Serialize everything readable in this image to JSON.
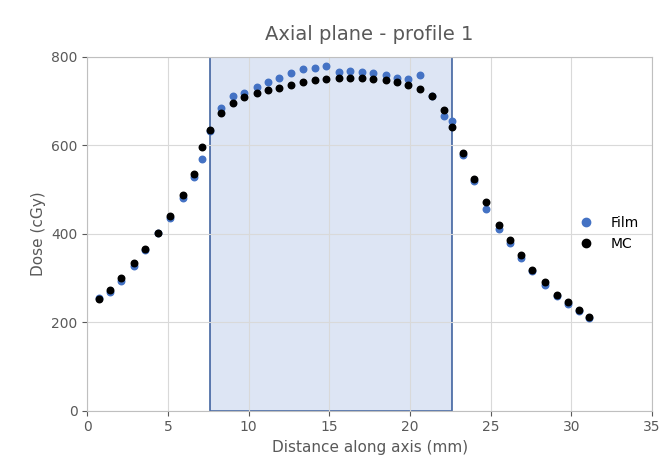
{
  "chart_data": {
    "type": "scatter",
    "title": "Axial plane - profile 1",
    "x_label": "Distance along axis (mm)",
    "y_label": "Dose (cGy)",
    "x": [
      0.7,
      1.4,
      2.1,
      2.9,
      3.6,
      4.4,
      5.1,
      5.9,
      6.6,
      7.1,
      7.6,
      8.3,
      9.0,
      9.7,
      10.5,
      11.2,
      11.9,
      12.6,
      13.4,
      14.1,
      14.8,
      15.6,
      16.3,
      17.0,
      17.7,
      18.5,
      19.2,
      19.9,
      20.6,
      21.4,
      22.1,
      22.6,
      23.3,
      24.0,
      24.7,
      25.5,
      26.2,
      26.9,
      27.6,
      28.4,
      29.1,
      29.8,
      30.5,
      31.1
    ],
    "series": [
      {
        "name": "Film",
        "color": "#4472c4",
        "marker": "circle",
        "values": [
          255,
          268,
          292,
          328,
          362,
          402,
          435,
          480,
          528,
          568,
          632,
          683,
          710,
          718,
          732,
          742,
          752,
          762,
          772,
          775,
          778,
          765,
          768,
          765,
          762,
          758,
          752,
          750,
          758,
          712,
          665,
          655,
          578,
          518,
          455,
          410,
          378,
          345,
          315,
          285,
          258,
          240,
          225,
          210
        ]
      },
      {
        "name": "MC",
        "color": "#000000",
        "marker": "circle",
        "values": [
          252,
          272,
          300,
          333,
          365,
          402,
          440,
          487,
          535,
          595,
          635,
          672,
          695,
          708,
          717,
          725,
          730,
          737,
          742,
          747,
          750,
          752,
          752,
          752,
          750,
          747,
          743,
          737,
          728,
          712,
          680,
          640,
          582,
          523,
          472,
          420,
          385,
          352,
          318,
          290,
          262,
          245,
          228,
          212
        ]
      }
    ],
    "highlight_x": [
      7.6,
      22.6
    ],
    "xlim": [
      0,
      35
    ],
    "xticks": [
      0,
      5,
      10,
      15,
      20,
      25,
      30,
      35
    ],
    "ylim": [
      0,
      800
    ],
    "yticks": [
      0,
      200,
      400,
      600,
      800
    ],
    "grid": true,
    "legend": "center right"
  }
}
